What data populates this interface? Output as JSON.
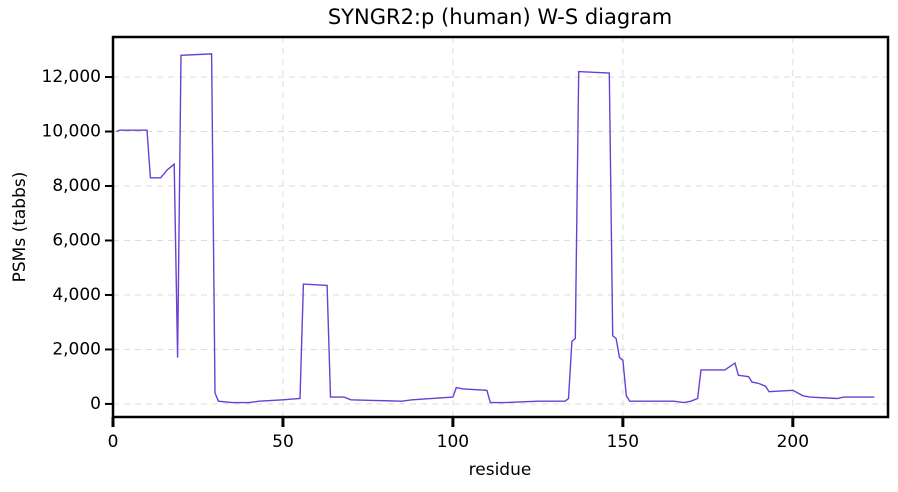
{
  "chart_data": {
    "type": "line",
    "title": "SYNGR2:p (human) W-S diagram",
    "x_label": "residue",
    "y_label": "PSMs (tabbs)",
    "x": [
      1,
      2,
      10,
      11,
      14,
      16,
      17,
      18,
      19,
      20,
      29,
      30,
      31,
      35,
      40,
      43,
      50,
      55,
      56,
      63,
      64,
      68,
      70,
      85,
      88,
      100,
      101,
      103,
      110,
      111,
      115,
      125,
      133,
      134,
      135,
      136,
      137,
      146,
      147,
      148,
      149,
      150,
      151,
      152,
      165,
      168,
      170,
      172,
      173,
      180,
      183,
      184,
      187,
      188,
      190,
      192,
      193,
      200,
      203,
      205,
      213,
      215,
      224
    ],
    "series": [
      {
        "name": "PSMs",
        "color": "#6a3fd6",
        "values": [
          10000,
          10050,
          10050,
          8300,
          8300,
          8600,
          8700,
          8800,
          1700,
          12800,
          12850,
          400,
          100,
          50,
          50,
          100,
          150,
          200,
          4400,
          4350,
          250,
          250,
          150,
          100,
          150,
          250,
          600,
          550,
          500,
          50,
          50,
          100,
          100,
          200,
          2300,
          2400,
          12200,
          12150,
          2500,
          2400,
          1700,
          1600,
          300,
          100,
          100,
          50,
          100,
          200,
          1250,
          1250,
          1500,
          1050,
          1000,
          800,
          750,
          650,
          450,
          500,
          300,
          250,
          200,
          250,
          250
        ]
      }
    ],
    "xlim": [
      0,
      228
    ],
    "ylim": [
      -480,
      13470
    ],
    "xticks": [
      0,
      50,
      100,
      150,
      200
    ],
    "yticks": [
      0,
      {
        "value": 2000,
        "label": "2,000"
      },
      {
        "value": 4000,
        "label": "4,000"
      },
      {
        "value": 6000,
        "label": "6,000"
      },
      {
        "value": 8000,
        "label": "8,000"
      },
      {
        "value": 10000,
        "label": "10,000"
      },
      {
        "value": 12000,
        "label": "12,000"
      }
    ],
    "grid": true
  }
}
